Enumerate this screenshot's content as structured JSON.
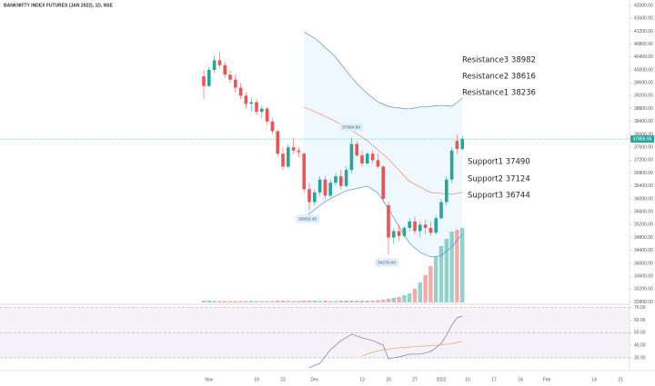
{
  "chart_data": {
    "type": "candlestick",
    "title": "BANKNIFTY INDEX FUTURES (JAN 2022), 1D, NSE",
    "categories": [
      null,
      "Nov",
      null,
      null,
      null,
      null,
      null,
      null,
      null,
      null,
      "19",
      null,
      null,
      null,
      null,
      "23",
      null,
      null,
      null,
      null,
      null,
      "Dec",
      null,
      null,
      null,
      null,
      null,
      null,
      null,
      null,
      "13",
      null,
      null,
      null,
      null,
      "20",
      null,
      null,
      null,
      null,
      "27",
      null,
      null,
      null,
      null,
      "2022",
      null,
      null,
      null,
      null,
      "10",
      null,
      null,
      null,
      null,
      "17",
      null,
      null,
      null,
      null,
      "24",
      null,
      null,
      null,
      null,
      "Feb",
      null,
      null,
      null,
      null,
      null,
      null,
      null,
      null,
      "14",
      null,
      null,
      null,
      null,
      "21",
      null
    ],
    "open": [
      39800,
      39500,
      40000,
      40300,
      40150,
      39850,
      39700,
      39450,
      39200,
      38950,
      39000,
      38700,
      38800,
      38400,
      38100,
      37400,
      37000,
      37600,
      37500,
      37400,
      36300,
      35900,
      36200,
      36600,
      36100,
      36500,
      36700,
      36400,
      36900,
      37700,
      37350,
      37100,
      37400,
      37200,
      37000,
      35800,
      34800,
      35000,
      34850,
      35100,
      35300,
      35000,
      35200,
      35100,
      34950,
      35400,
      35900,
      36600,
      37800,
      37550,
      null,
      null,
      null,
      null,
      null,
      null,
      null,
      null,
      null,
      null,
      null,
      null,
      null,
      null,
      null,
      null,
      null,
      null,
      null,
      null,
      null,
      null,
      null,
      null,
      null,
      null,
      null,
      null,
      null,
      null,
      null
    ],
    "high": [
      40000,
      40100,
      40450,
      40550,
      40250,
      40000,
      39850,
      39600,
      39300,
      39150,
      39100,
      38900,
      38850,
      38500,
      38150,
      37600,
      37700,
      37900,
      37600,
      37450,
      36500,
      36300,
      36700,
      36700,
      36600,
      36800,
      36900,
      37000,
      37894.9,
      37800,
      37500,
      37450,
      37500,
      37400,
      37050,
      35900,
      35100,
      35200,
      35150,
      35400,
      35450,
      35300,
      35350,
      35300,
      35500,
      36000,
      36700,
      37600,
      38000,
      37950,
      null,
      null,
      null,
      null,
      null,
      null,
      null,
      null,
      null,
      null,
      null,
      null,
      null,
      null,
      null,
      null,
      null,
      null,
      null,
      null,
      null,
      null,
      null,
      null,
      null,
      null,
      null,
      null,
      null,
      null,
      null
    ],
    "low": [
      39100,
      39450,
      39900,
      40050,
      39750,
      39600,
      39300,
      39100,
      38800,
      38700,
      38600,
      38500,
      38300,
      38000,
      37300,
      36900,
      36950,
      37400,
      37300,
      36200,
      35653.4,
      35800,
      36100,
      36000,
      36050,
      36400,
      36300,
      36350,
      36800,
      37300,
      37000,
      37050,
      37100,
      36950,
      35900,
      34270,
      34600,
      34700,
      34800,
      35000,
      34900,
      34800,
      34900,
      34850,
      34900,
      35350,
      35800,
      36500,
      37400,
      37500,
      null,
      null,
      null,
      null,
      null,
      null,
      null,
      null,
      null,
      null,
      null,
      null,
      null,
      null,
      null,
      null,
      null,
      null,
      null,
      null,
      null,
      null,
      null,
      null,
      null,
      null,
      null,
      null,
      null,
      null,
      null
    ],
    "close": [
      39500,
      40000,
      40300,
      40150,
      39850,
      39700,
      39450,
      39200,
      38950,
      39000,
      38700,
      38800,
      38400,
      38100,
      37400,
      37000,
      37600,
      37500,
      37450,
      36300,
      35900,
      36200,
      36600,
      36100,
      36500,
      36700,
      36400,
      36900,
      37700,
      37350,
      37100,
      37400,
      37200,
      37000,
      36000,
      34800,
      35000,
      34850,
      35100,
      35300,
      35000,
      35200,
      35100,
      34950,
      35400,
      35900,
      36600,
      37500,
      37550,
      37856.95,
      null,
      null,
      null,
      null,
      null,
      null,
      null,
      null,
      null,
      null,
      null,
      null,
      null,
      null,
      null,
      null,
      null,
      null,
      null,
      null,
      null,
      null,
      null,
      null,
      null,
      null,
      null,
      null,
      null,
      null,
      null
    ],
    "up_color": "#26a69a",
    "down_color": "#ef5350",
    "last_price_label": "37856.95",
    "ylim": [
      32730,
      42170
    ],
    "yticks": [
      {
        "value": 32800,
        "label": "32800.00"
      },
      {
        "value": 33200,
        "label": "33200.00"
      },
      {
        "value": 33600,
        "label": "33600.00"
      },
      {
        "value": 34000,
        "label": "34000.00"
      },
      {
        "value": 34400,
        "label": "34400.00"
      },
      {
        "value": 34800,
        "label": "34800.00"
      },
      {
        "value": 35200,
        "label": "35200.00"
      },
      {
        "value": 35600,
        "label": "35600.00"
      },
      {
        "value": 36000,
        "label": "36000.00"
      },
      {
        "value": 36400,
        "label": "36400.00"
      },
      {
        "value": 36800,
        "label": "36800.00"
      },
      {
        "value": 37200,
        "label": "37200.00"
      },
      {
        "value": 37600,
        "label": "37600.00"
      },
      {
        "value": 38000,
        "label": "38000.00"
      },
      {
        "value": 38400,
        "label": "38400.00"
      },
      {
        "value": 38800,
        "label": "38800.00"
      },
      {
        "value": 39200,
        "label": "39200.00"
      },
      {
        "value": 39600,
        "label": "39600.00"
      },
      {
        "value": 40000,
        "label": "40000.00"
      },
      {
        "value": 40400,
        "label": "40400.00"
      },
      {
        "value": 40800,
        "label": "40800.00"
      },
      {
        "value": 41200,
        "label": "41200.00"
      },
      {
        "value": 41600,
        "label": "41600.00"
      },
      {
        "value": 42000,
        "label": "42000.00"
      }
    ],
    "volume": {
      "ylim": [
        0,
        100
      ],
      "values": [
        2,
        2,
        1.5,
        1.5,
        1.5,
        1.5,
        1.5,
        1.5,
        1.5,
        1.5,
        1.5,
        1.5,
        1.5,
        1.5,
        2,
        2,
        1.5,
        1.5,
        1.5,
        2,
        2,
        2,
        1.5,
        2,
        1.5,
        1.5,
        2,
        2,
        2,
        2,
        2,
        2,
        2,
        2.5,
        3,
        4,
        5,
        6,
        8,
        10,
        15,
        22,
        30,
        40,
        50,
        62,
        70,
        78,
        80,
        82,
        null,
        null,
        null,
        null,
        null,
        null,
        null,
        null,
        null,
        null,
        null,
        null,
        null,
        null,
        null,
        null,
        null,
        null,
        null,
        null,
        null,
        null,
        null,
        null,
        null,
        null,
        null,
        null,
        null,
        null,
        null
      ]
    },
    "bands": {
      "fill": "rgba(33,150,243,0.07)",
      "upper": {
        "color": "#5c8fd6",
        "values": [
          null,
          null,
          null,
          null,
          null,
          null,
          null,
          null,
          null,
          null,
          null,
          null,
          null,
          null,
          null,
          null,
          null,
          null,
          null,
          41180,
          41080,
          40990,
          40850,
          40700,
          40550,
          40390,
          40180,
          39970,
          39770,
          39580,
          39420,
          39270,
          39140,
          39010,
          38940,
          38870,
          38840,
          38820,
          38800,
          38790,
          38820,
          38850,
          38860,
          38870,
          38890,
          38900,
          38890,
          38870,
          38990,
          39130,
          null,
          null,
          null,
          null,
          null,
          null,
          null,
          null,
          null,
          null,
          null,
          null,
          null,
          null,
          null,
          null,
          null,
          null,
          null,
          null,
          null,
          null,
          null,
          null,
          null,
          null,
          null,
          null,
          null,
          null,
          null
        ]
      },
      "middle": {
        "color": "#f08a65",
        "values": [
          null,
          null,
          null,
          null,
          null,
          null,
          null,
          null,
          null,
          null,
          null,
          null,
          null,
          null,
          null,
          null,
          null,
          null,
          null,
          38850,
          38780,
          38710,
          38640,
          38560,
          38480,
          38400,
          38310,
          38230,
          38120,
          38020,
          37910,
          37800,
          37660,
          37520,
          37380,
          37240,
          37060,
          36890,
          36710,
          36540,
          36450,
          36370,
          36280,
          36200,
          36180,
          36170,
          36150,
          36140,
          36170,
          36200,
          null,
          null,
          null,
          null,
          null,
          null,
          null,
          null,
          null,
          null,
          null,
          null,
          null,
          null,
          null,
          null,
          null,
          null,
          null,
          null,
          null,
          null,
          null,
          null,
          null,
          null,
          null,
          null,
          null,
          null,
          null
        ]
      },
      "lower": {
        "color": "#5c8fd6",
        "values": [
          null,
          null,
          null,
          null,
          null,
          null,
          null,
          null,
          null,
          null,
          null,
          null,
          null,
          null,
          null,
          null,
          null,
          null,
          null,
          35410,
          35540,
          35660,
          35790,
          35920,
          36000,
          36090,
          36170,
          36250,
          36290,
          36320,
          36360,
          36390,
          36290,
          36180,
          35940,
          35690,
          35410,
          35130,
          34880,
          34620,
          34480,
          34340,
          34270,
          34200,
          34210,
          34230,
          34370,
          34510,
          34710,
          34900,
          null,
          null,
          null,
          null,
          null,
          null,
          null,
          null,
          null,
          null,
          null,
          null,
          null,
          null,
          null,
          null,
          null,
          null,
          null,
          null,
          null,
          null,
          null,
          null,
          null,
          null,
          null,
          null,
          null,
          null,
          null
        ]
      }
    },
    "rsi": {
      "color": "#7e6fd0",
      "values": [
        null,
        null,
        null,
        null,
        null,
        null,
        null,
        null,
        null,
        null,
        null,
        null,
        null,
        null,
        null,
        null,
        null,
        null,
        null,
        null,
        22,
        24,
        25.6,
        31,
        36.5,
        40,
        43.7,
        46,
        48.8,
        47.5,
        45.9,
        44.8,
        43.7,
        42,
        40.1,
        29.2,
        30,
        30.7,
        31.8,
        32.9,
        32.9,
        32.9,
        34,
        35,
        38,
        41.6,
        48,
        56,
        61.9,
        63.3,
        null,
        null,
        null,
        null,
        null,
        null,
        null,
        null,
        null,
        null,
        null,
        null,
        null,
        null,
        null,
        null,
        null,
        null,
        null,
        null,
        null,
        null,
        null,
        null,
        null,
        null,
        null,
        null,
        null,
        null,
        null
      ],
      "ma": {
        "color": "#f5a35c",
        "values": [
          null,
          null,
          null,
          null,
          null,
          null,
          null,
          null,
          null,
          null,
          null,
          null,
          null,
          null,
          null,
          null,
          null,
          null,
          null,
          null,
          null,
          null,
          null,
          null,
          null,
          null,
          null,
          null,
          null,
          null,
          31.4,
          33,
          34.5,
          35.5,
          36.5,
          37,
          37.5,
          38,
          38.3,
          38.6,
          38.9,
          39.2,
          39.5,
          39.8,
          40,
          40.3,
          40.8,
          41.5,
          42.3,
          43,
          null,
          null,
          null,
          null,
          null,
          null,
          null,
          null,
          null,
          null,
          null,
          null,
          null,
          null,
          null,
          null,
          null,
          null,
          null,
          null,
          null,
          null,
          null,
          null,
          null,
          null,
          null,
          null,
          null,
          null,
          null
        ]
      },
      "ylim": [
        22,
        72
      ],
      "yticks": [
        {
          "value": 70,
          "label": "70.00"
        },
        {
          "value": 60,
          "label": "60.00"
        },
        {
          "value": 50,
          "label": "50.00"
        },
        {
          "value": 40,
          "label": "40.00"
        },
        {
          "value": 30,
          "label": "30.00"
        }
      ],
      "levels": [
        70,
        50,
        30
      ]
    },
    "annotations": [
      "Resistance3 38982",
      "Resistance2 38616",
      "Resistance1 38236",
      "Support1 37490",
      "Support2 37124",
      "Support3 36744"
    ],
    "callouts": [
      "37894.90",
      "35653.40",
      "34270.00"
    ]
  }
}
